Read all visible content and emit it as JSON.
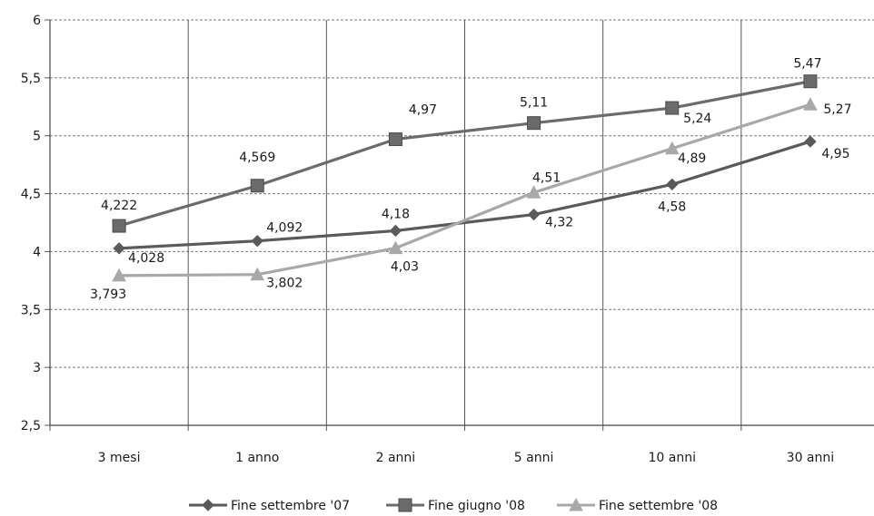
{
  "chart_data": {
    "type": "line",
    "categories": [
      "3 mesi",
      "1 anno",
      "2 anni",
      "5 anni",
      "10 anni",
      "30 anni"
    ],
    "ylim": [
      2.5,
      6
    ],
    "ytick_step": 0.5,
    "ytick_labels": [
      "2,5",
      "3",
      "3,5",
      "4",
      "4,5",
      "5",
      "5,5",
      "6"
    ],
    "grid": true,
    "legend_position": "bottom",
    "series": [
      {
        "name": "Fine settembre '07",
        "color": "#5a5a5a",
        "marker": "diamond",
        "values": [
          4.028,
          4.092,
          4.18,
          4.32,
          4.58,
          4.95
        ],
        "labels": [
          "4,028",
          "4,092",
          "4,18",
          "4,32",
          "4,58",
          "4,95"
        ]
      },
      {
        "name": "Fine giugno '08",
        "color": "#6b6b6b",
        "marker": "square",
        "values": [
          4.222,
          4.569,
          4.97,
          5.11,
          5.24,
          5.47
        ],
        "labels": [
          "4,222",
          "4,569",
          "4,97",
          "5,11",
          "5,24",
          "5,47"
        ]
      },
      {
        "name": "Fine settembre '08",
        "color": "#a8a8a8",
        "marker": "triangle",
        "values": [
          3.793,
          3.802,
          4.03,
          4.51,
          4.89,
          5.27
        ],
        "labels": [
          "3,793",
          "3,802",
          "4,03",
          "4,51",
          "4,89",
          "5,27"
        ]
      }
    ]
  }
}
